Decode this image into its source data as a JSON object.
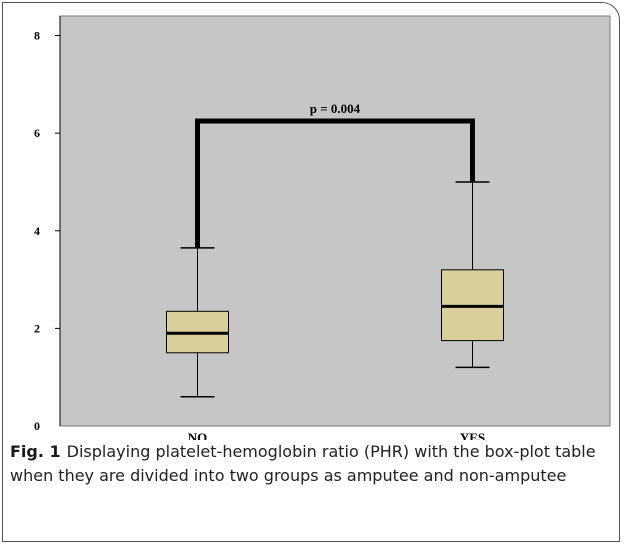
{
  "chart_data": {
    "type": "box",
    "categories": [
      "NO",
      "YES"
    ],
    "boxes": [
      {
        "category": "NO",
        "min": 0.6,
        "q1": 1.5,
        "median": 1.9,
        "q3": 2.35,
        "max": 3.65
      },
      {
        "category": "YES",
        "min": 1.2,
        "q1": 1.75,
        "median": 2.45,
        "q3": 3.2,
        "max": 5.0
      }
    ],
    "yticks": [
      0,
      2,
      4,
      6,
      8
    ],
    "ylim": [
      0,
      8.4
    ],
    "annotation": {
      "text": "p = 0.004",
      "bracket_y": 6.25
    },
    "colors": {
      "plot_bg": "#c6c6c6",
      "box_fill": "#d9cf9b",
      "line": "#000000"
    },
    "grid": false,
    "legend": "none"
  },
  "caption": {
    "label": "Fig. 1",
    "text": "Displaying platelet-hemoglobin ratio (PHR) with the box-plot table when they are divided into two groups as amputee and non-amputee"
  }
}
